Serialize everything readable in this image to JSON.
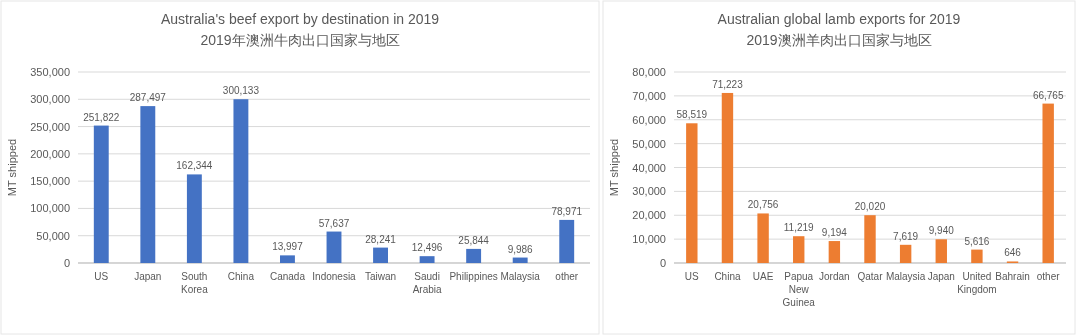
{
  "chart_data": [
    {
      "type": "bar",
      "title": "Australia's beef export by destination in 2019",
      "subtitle": "2019年澳洲牛肉出口国家与地区",
      "ylabel": "MT shipped",
      "categories": [
        "US",
        "Japan",
        "South Korea",
        "China",
        "Canada",
        "Indonesia",
        "Taiwan",
        "Saudi Arabia",
        "Philippines",
        "Malaysia",
        "other"
      ],
      "values": [
        251822,
        287497,
        162344,
        300133,
        13997,
        57637,
        28241,
        12496,
        25844,
        9986,
        78971
      ],
      "value_labels": [
        "251,822",
        "287,497",
        "162,344",
        "300,133",
        "13,997",
        "57,637",
        "28,241",
        "12,496",
        "25,844",
        "9,986",
        "78,971"
      ],
      "color": "#4472c4",
      "ylim": [
        0,
        350000
      ],
      "yticks": [
        {
          "value": 0,
          "label": "0"
        },
        {
          "value": 50000,
          "label": "50,000"
        },
        {
          "value": 100000,
          "label": "100,000"
        },
        {
          "value": 150000,
          "label": "150,000"
        },
        {
          "value": 200000,
          "label": "200,000"
        },
        {
          "value": 250000,
          "label": "250,000"
        },
        {
          "value": 300000,
          "label": "300,000"
        },
        {
          "value": 350000,
          "label": "350,000"
        }
      ],
      "grid": "y"
    },
    {
      "type": "bar",
      "title": "Australian global lamb exports for 2019",
      "subtitle": "2019澳洲羊肉出口国家与地区",
      "ylabel": "MT shipped",
      "categories": [
        "US",
        "China",
        "UAE",
        "Papua New Guinea",
        "Jordan",
        "Qatar",
        "Malaysia",
        "Japan",
        "United Kingdom",
        "Bahrain",
        "other"
      ],
      "values": [
        58519,
        71223,
        20756,
        11219,
        9194,
        20020,
        7619,
        9940,
        5616,
        646,
        66765
      ],
      "value_labels": [
        "58,519",
        "71,223",
        "20,756",
        "11,219",
        "9,194",
        "20,020",
        "7,619",
        "9,940",
        "5,616",
        "646",
        "66,765"
      ],
      "color": "#ed7d31",
      "ylim": [
        0,
        80000
      ],
      "yticks": [
        {
          "value": 0,
          "label": "0"
        },
        {
          "value": 10000,
          "label": "10,000"
        },
        {
          "value": 20000,
          "label": "20,000"
        },
        {
          "value": 30000,
          "label": "30,000"
        },
        {
          "value": 40000,
          "label": "40,000"
        },
        {
          "value": 50000,
          "label": "50,000"
        },
        {
          "value": 60000,
          "label": "60,000"
        },
        {
          "value": 70000,
          "label": "70,000"
        },
        {
          "value": 80000,
          "label": "80,000"
        }
      ],
      "grid": "y"
    }
  ]
}
